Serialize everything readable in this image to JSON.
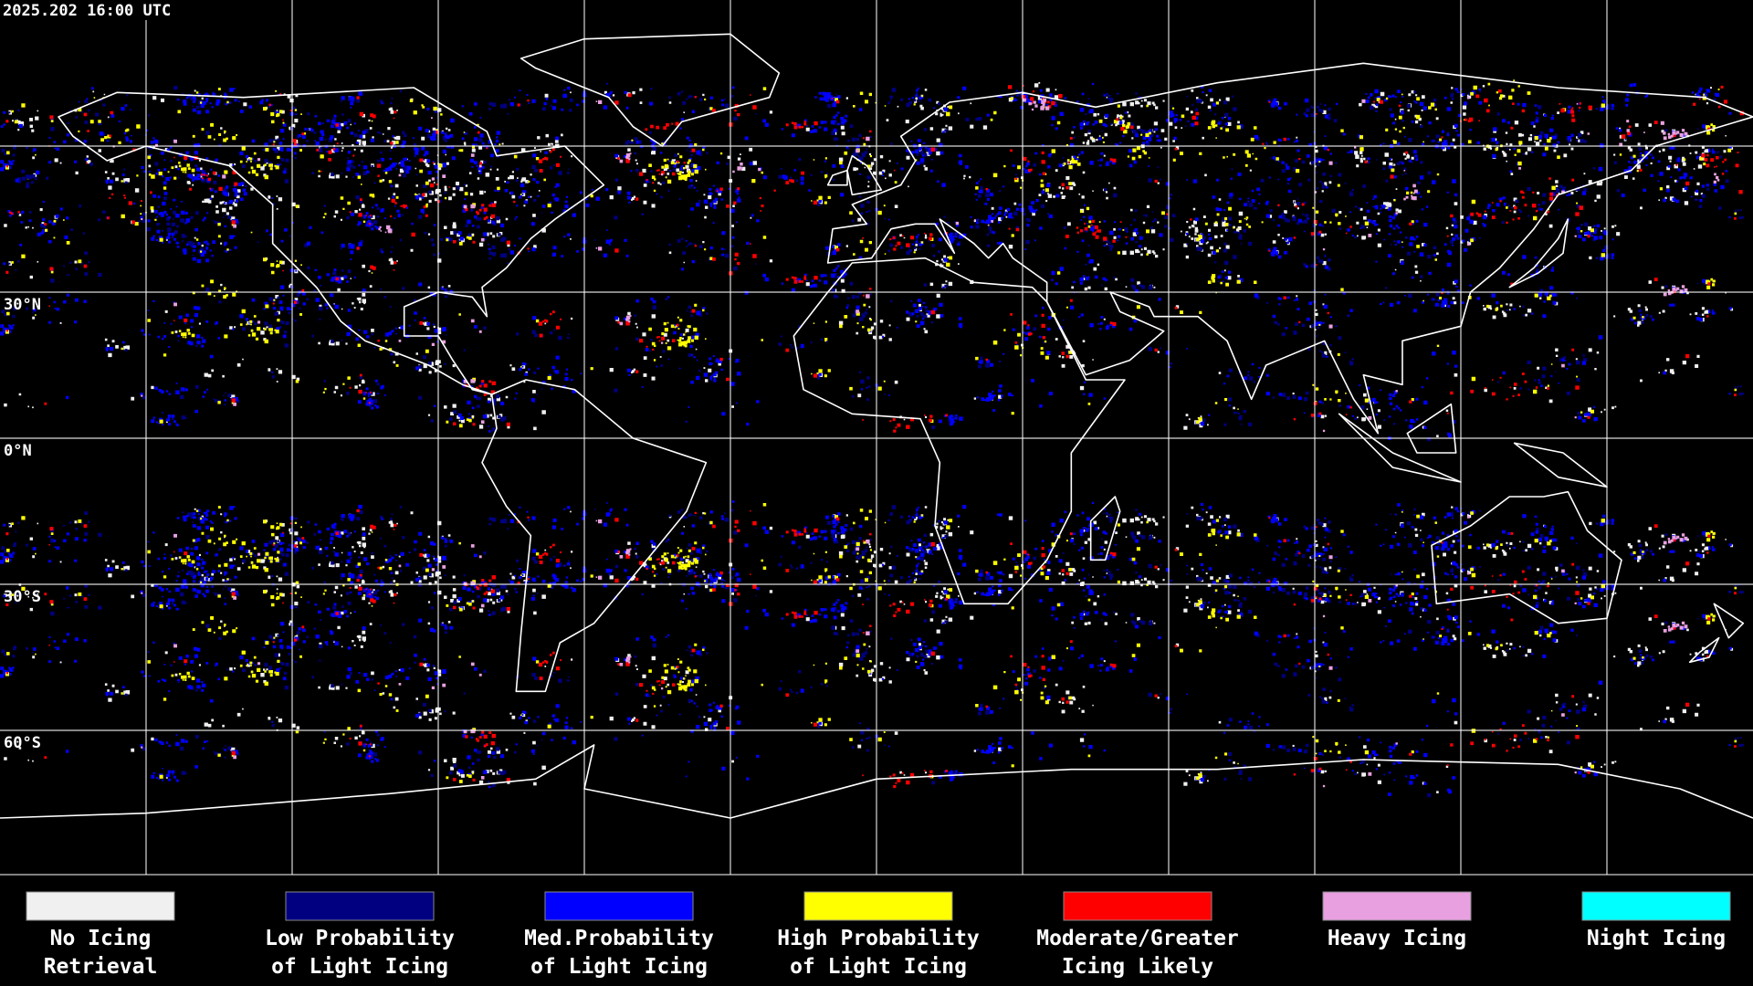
{
  "header": {
    "timestamp": "2025.202 16:00 UTC"
  },
  "lat_labels": [
    "30°N",
    "0°N",
    "30°S",
    "60°S"
  ],
  "legend": [
    {
      "label": [
        "No Icing",
        "Retrieval"
      ],
      "color": "#f0f0f0"
    },
    {
      "label": [
        "Low Probability",
        "of Light Icing"
      ],
      "color": "#000080"
    },
    {
      "label": [
        "Med.Probability",
        "of Light Icing"
      ],
      "color": "#0000ff"
    },
    {
      "label": [
        "High Probability",
        "of Light Icing"
      ],
      "color": "#ffff00"
    },
    {
      "label": [
        "Moderate/Greater",
        "Icing Likely"
      ],
      "color": "#ff0000"
    },
    {
      "label": [
        "Heavy Icing"
      ],
      "color": "#e8a0e0"
    },
    {
      "label": [
        "Night Icing"
      ],
      "color": "#00ffff"
    }
  ]
}
